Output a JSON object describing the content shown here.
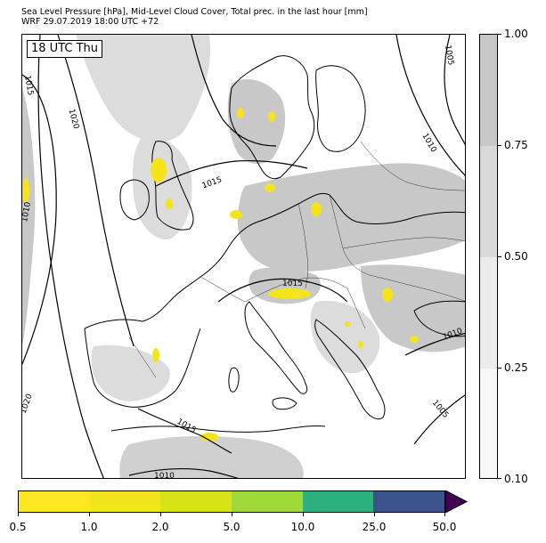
{
  "header": {
    "title_line1": "Sea Level Pressure [hPa], Mid-Level Cloud Cover, Total prec. in the last hour [mm]",
    "title_line2": "WRF 29.07.2019 18:00 UTC +72"
  },
  "map": {
    "time_label": "18 UTC Thu",
    "isobar_labels": [
      "1015",
      "1020",
      "1010",
      "1015",
      "1015",
      "1005",
      "1010",
      "1010",
      "1005",
      "1020",
      "1015",
      "1010"
    ]
  },
  "cloud_colorbar": {
    "ticks": [
      "1.00",
      "0.75",
      "0.50",
      "0.25",
      "0.10"
    ],
    "colors": [
      "#c8c8c8",
      "#d9d9d9",
      "#ececec",
      "#f8f8f8"
    ]
  },
  "precip_colorbar": {
    "ticks": [
      "0.5",
      "1.0",
      "2.0",
      "5.0",
      "10.0",
      "25.0",
      "50.0"
    ],
    "colors": [
      "#fde725",
      "#f1e51d",
      "#d8e219",
      "#a0da39",
      "#2db27d",
      "#3b528b",
      "#440154"
    ]
  },
  "colors": {
    "land": "#ffffff",
    "cloud": "#c8c8c8",
    "cloud_light": "#dcdcdc",
    "precip": "#f5e31c"
  }
}
